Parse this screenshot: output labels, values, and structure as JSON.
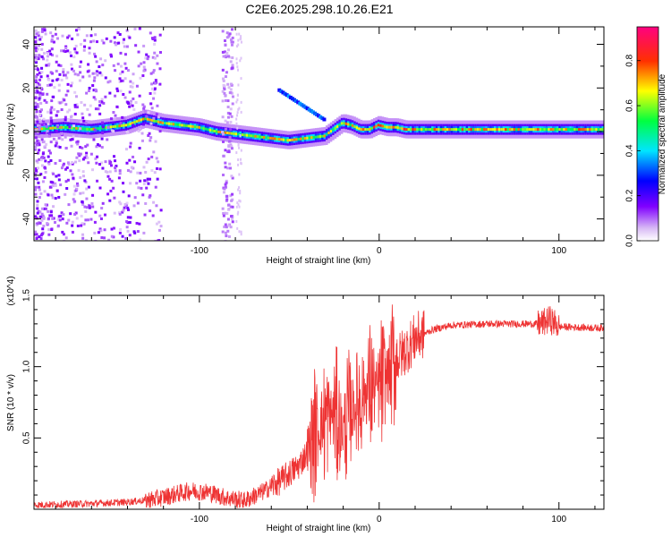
{
  "title": "C2E6.2025.298.10.26.E21",
  "chart_data": [
    {
      "type": "heatmap",
      "xlabel": "Height of straight line (km)",
      "ylabel": "Frequency (Hz)",
      "xlim": [
        -192,
        125
      ],
      "ylim": [
        -50,
        48
      ],
      "xticks": [
        -100,
        0,
        100
      ],
      "xtick_labels": [
        "-100",
        "0",
        "100"
      ],
      "yticks": [
        -40,
        -20,
        0,
        20,
        40
      ],
      "ytick_labels": [
        "-40",
        "-20",
        "0",
        "20",
        "40"
      ],
      "colorbar": {
        "label": "Normalized spectral amplitude",
        "range": [
          0,
          0.95
        ],
        "ticks": [
          0,
          0.2,
          0.4,
          0.6,
          0.8
        ],
        "tick_labels": [
          "0.0",
          "0.2",
          "0.4",
          "0.6",
          "0.8"
        ],
        "colormap": "rainbow (white-violet-blue-cyan-green-yellow-red-magenta)"
      },
      "ridge": {
        "x": [
          -192,
          -175,
          -160,
          -150,
          -140,
          -130,
          -120,
          -110,
          -100,
          -90,
          -80,
          -70,
          -60,
          -50,
          -40,
          -30,
          -20,
          -15,
          -10,
          -5,
          0,
          5,
          10,
          15,
          20,
          30,
          40,
          60,
          80,
          100,
          125
        ],
        "y": [
          1,
          2,
          1,
          2,
          3,
          6,
          4,
          3,
          2,
          0,
          -1,
          -2,
          -3,
          -4,
          -3,
          -2,
          4,
          3,
          1,
          1,
          3,
          2,
          2,
          1,
          1,
          1,
          1,
          1,
          1,
          1,
          1
        ]
      }
    },
    {
      "type": "line",
      "xlabel": "Height of straight line (km)",
      "ylabel": "SNR (10 * v/v)",
      "y_multiplier": "(x10^4)",
      "xlim": [
        -192,
        125
      ],
      "ylim": [
        0,
        1.5
      ],
      "xticks": [
        -100,
        0,
        100
      ],
      "xtick_labels": [
        "-100",
        "0",
        "100"
      ],
      "yticks": [
        0.5,
        1.0,
        1.5
      ],
      "ytick_labels": [
        "0.5",
        "1.0",
        "1.5"
      ],
      "series": [
        {
          "name": "SNR",
          "color": "#ee3333",
          "x": [
            -192,
            -160,
            -140,
            -125,
            -115,
            -105,
            -95,
            -85,
            -75,
            -65,
            -55,
            -45,
            -40,
            -35,
            -30,
            -25,
            -20,
            -15,
            -10,
            -5,
            0,
            5,
            10,
            15,
            20,
            30,
            40,
            60,
            80,
            90,
            95,
            100,
            125
          ],
          "y": [
            0.03,
            0.04,
            0.05,
            0.07,
            0.1,
            0.13,
            0.12,
            0.08,
            0.06,
            0.12,
            0.2,
            0.3,
            0.4,
            0.55,
            0.62,
            0.68,
            0.55,
            0.7,
            0.8,
            0.85,
            0.85,
            0.95,
            1.05,
            1.12,
            1.2,
            1.26,
            1.29,
            1.3,
            1.3,
            1.3,
            1.33,
            1.28,
            1.27
          ]
        }
      ]
    }
  ]
}
